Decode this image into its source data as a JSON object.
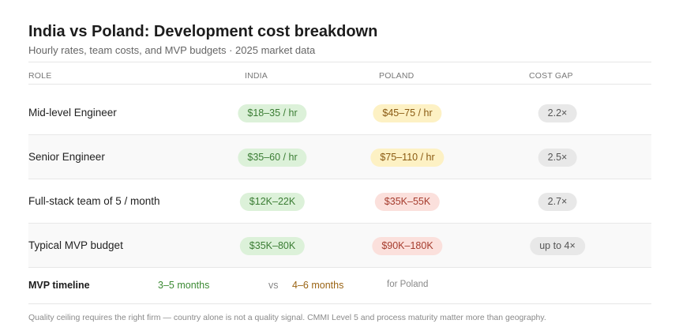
{
  "header": {
    "title": "India vs Poland: Development cost breakdown",
    "subtitle": "Hourly rates, team costs, and MVP budgets · 2025 market data"
  },
  "columns": {
    "role": "ROLE",
    "india": "INDIA",
    "poland": "POLAND",
    "gap": "COST GAP"
  },
  "rows": [
    {
      "role": "Mid-level Engineer",
      "india": "$18–35 / hr",
      "poland": "$45–75 / hr",
      "gap": "2.2×"
    },
    {
      "role": "Senior Engineer",
      "india": "$35–60 / hr",
      "poland": "$75–110 / hr",
      "gap": "2.5×"
    },
    {
      "role": "Full-stack team of 5 / month",
      "india": "$12K–22K",
      "poland": "$35K–55K",
      "gap": "2.7×"
    },
    {
      "role": "Typical MVP budget",
      "india": "$35K–80K",
      "poland": "$90K–180K",
      "gap": "up to 4×"
    }
  ],
  "timeline": {
    "label": "MVP timeline",
    "india": "3–5 months",
    "vs": "vs",
    "poland": "4–6 months",
    "suffix": "for Poland"
  },
  "footnote": "Quality ceiling requires the right firm — country alone is not a quality signal. CMMI Level 5 and process maturity matter more than geography.",
  "colors": {
    "green_bg": "#dcf1d9",
    "green_text": "#3b7d34",
    "yellow_bg": "#fdf1c4",
    "yellow_text": "#8a5a12",
    "red_bg": "#fbe0dc",
    "red_text": "#a63c2e",
    "gray_bg": "#e8e8e8",
    "gray_text": "#555555"
  }
}
